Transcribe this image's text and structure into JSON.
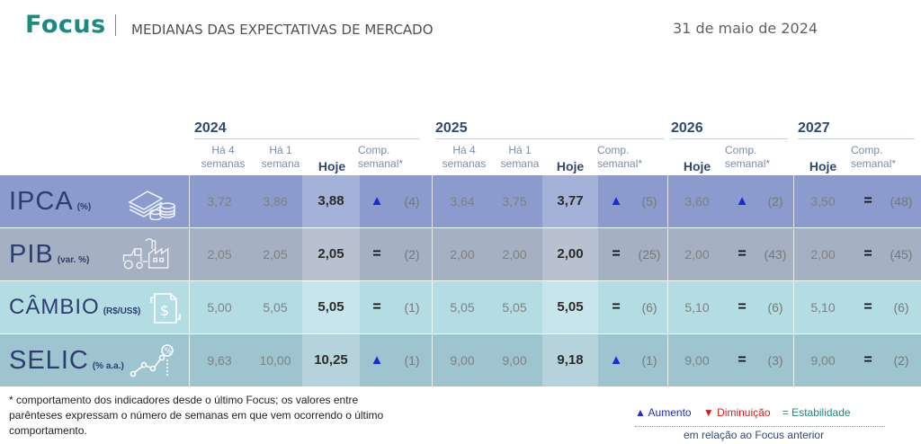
{
  "header": {
    "brand": "Focus",
    "subtitle": "MEDIANAS DAS EXPECTATIVAS DE MERCADO",
    "date": "31 de maio de 2024"
  },
  "years": [
    "2024",
    "2025",
    "2026",
    "2027"
  ],
  "column_headers": {
    "ha4_line1": "Há 4",
    "ha4_line2": "semanas",
    "ha1_line1": "Há 1",
    "ha1_line2": "semana",
    "hoje": "Hoje",
    "comp_line1": "Comp.",
    "comp_line2": "semanal*"
  },
  "rows": [
    {
      "name": "IPCA",
      "unit": "(%)",
      "icon": "money-stack-coins-icon",
      "color": "#8b9bcd",
      "y2024": {
        "ha4": "3,72",
        "ha1": "3,86",
        "hoje": "3,88",
        "trend": "▲",
        "count": "(4)"
      },
      "y2025": {
        "ha4": "3,64",
        "ha1": "3,75",
        "hoje": "3,77",
        "trend": "▲",
        "count": "(5)"
      },
      "y2026": {
        "hoje": "3,60",
        "trend": "▲",
        "count": "(2)"
      },
      "y2027": {
        "hoje": "3,50",
        "trend": "=",
        "count": "(48)"
      }
    },
    {
      "name": "PIB",
      "unit": "(var. %)",
      "icon": "factory-tractor-icon",
      "color": "#a5b0c2",
      "y2024": {
        "ha4": "2,05",
        "ha1": "2,05",
        "hoje": "2,05",
        "trend": "=",
        "count": "(2)"
      },
      "y2025": {
        "ha4": "2,00",
        "ha1": "2,00",
        "hoje": "2,00",
        "trend": "=",
        "count": "(25)"
      },
      "y2026": {
        "hoje": "2,00",
        "trend": "=",
        "count": "(43)"
      },
      "y2027": {
        "hoje": "2,00",
        "trend": "=",
        "count": "(45)"
      }
    },
    {
      "name": "CÂMBIO",
      "unit": "(R$/US$)",
      "icon": "currency-exchange-icon",
      "color": "#b4dde3",
      "y2024": {
        "ha4": "5,00",
        "ha1": "5,05",
        "hoje": "5,05",
        "trend": "=",
        "count": "(1)"
      },
      "y2025": {
        "ha4": "5,05",
        "ha1": "5,05",
        "hoje": "5,05",
        "trend": "=",
        "count": "(6)"
      },
      "y2026": {
        "hoje": "5,10",
        "trend": "=",
        "count": "(6)"
      },
      "y2027": {
        "hoje": "5,10",
        "trend": "=",
        "count": "(6)"
      }
    },
    {
      "name": "SELIC",
      "unit": "(% a.a.)",
      "icon": "rising-rate-chart-icon",
      "color": "#9ec5cf",
      "y2024": {
        "ha4": "9,63",
        "ha1": "10,00",
        "hoje": "10,25",
        "trend": "▲",
        "count": "(1)"
      },
      "y2025": {
        "ha4": "9,00",
        "ha1": "9,00",
        "hoje": "9,18",
        "trend": "▲",
        "count": "(1)"
      },
      "y2026": {
        "hoje": "9,00",
        "trend": "=",
        "count": "(3)"
      },
      "y2027": {
        "hoje": "9,00",
        "trend": "=",
        "count": "(2)"
      }
    }
  ],
  "footnote": "* comportamento dos indicadores desde o último Focus; os valores entre parênteses expressam o número de semanas em que vem ocorrendo o último comportamento.",
  "legend": {
    "up": "▲ Aumento",
    "down": "▼ Diminuição",
    "eq": "= Estabilidade",
    "sub": "em relação ao Focus anterior"
  }
}
